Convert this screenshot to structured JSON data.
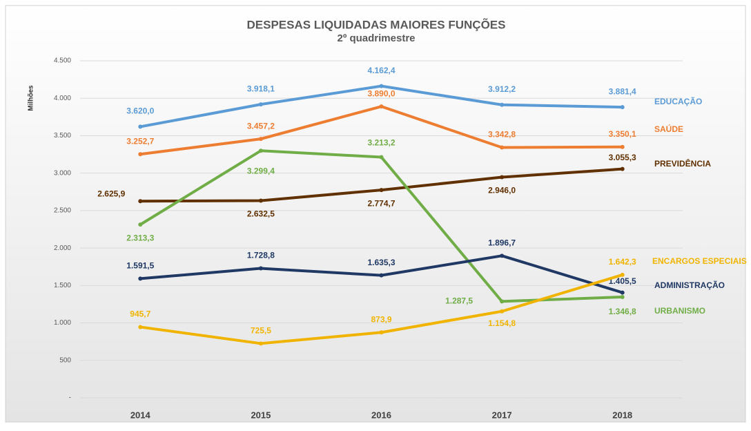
{
  "chart_data": {
    "type": "line",
    "title": "DESPESAS LIQUIDADAS MAIORES FUNÇÕES",
    "subtitle": "2º quadrimestre",
    "y_label": "Milhões",
    "categories": [
      "2014",
      "2015",
      "2016",
      "2017",
      "2018"
    ],
    "ylim": [
      0,
      4500
    ],
    "yticks": [
      {
        "value": 0,
        "label": "-"
      },
      500,
      {
        "value": 1000,
        "label": "1.000"
      },
      {
        "value": 1500,
        "label": "1.500"
      },
      {
        "value": 2000,
        "label": "2.000"
      },
      {
        "value": 2500,
        "label": "2.500"
      },
      {
        "value": 3000,
        "label": "3.000"
      },
      {
        "value": 3500,
        "label": "3.500"
      },
      {
        "value": 4000,
        "label": "4.000"
      },
      {
        "value": 4500,
        "label": "4.500"
      }
    ],
    "grid": true,
    "series": [
      {
        "name": "EDUCAÇÃO",
        "color": "#5b9bd5",
        "values": [
          3620.0,
          3918.1,
          4162.4,
          3912.2,
          3881.4
        ],
        "value_labels": [
          "3.620,0",
          "3.918,1",
          "4.162,4",
          "3.912,2",
          "3.881,4"
        ]
      },
      {
        "name": "SAÚDE",
        "color": "#ed7d31",
        "values": [
          3252.7,
          3457.2,
          3890.0,
          3342.8,
          3350.1
        ],
        "value_labels": [
          "3.252,7",
          "3.457,2",
          "3.890,0",
          "3.342,8",
          "3.350,1"
        ]
      },
      {
        "name": "PREVIDÊNCIA",
        "color": "#603000",
        "values": [
          2625.9,
          2632.5,
          2774.7,
          2946.0,
          3055.3
        ],
        "value_labels": [
          "2.625,9",
          "2.632,5",
          "2.774,7",
          "2.946,0",
          "3.055,3"
        ]
      },
      {
        "name": "URBANISMO",
        "color": "#70ad47",
        "values": [
          2313.3,
          3299.4,
          3213.2,
          1287.5,
          1346.8
        ],
        "value_labels": [
          "2.313,3",
          "3.299,4",
          "3.213,2",
          "1.287,5",
          "1.346,8"
        ]
      },
      {
        "name": "ADMINISTRAÇÃO",
        "color": "#1f3864",
        "values": [
          1591.5,
          1728.8,
          1635.3,
          1896.7,
          1405.5
        ],
        "value_labels": [
          "1.591,5",
          "1.728,8",
          "1.635,3",
          "1.896,7",
          "1.405,5"
        ]
      },
      {
        "name": "ENCARGOS ESPECIAIS",
        "color": "#f0b400",
        "values": [
          945.7,
          725.5,
          873.9,
          1154.8,
          1642.3
        ],
        "value_labels": [
          "945,7",
          "725,5",
          "873,9",
          "1.154,8",
          "1.642,3"
        ]
      }
    ]
  }
}
